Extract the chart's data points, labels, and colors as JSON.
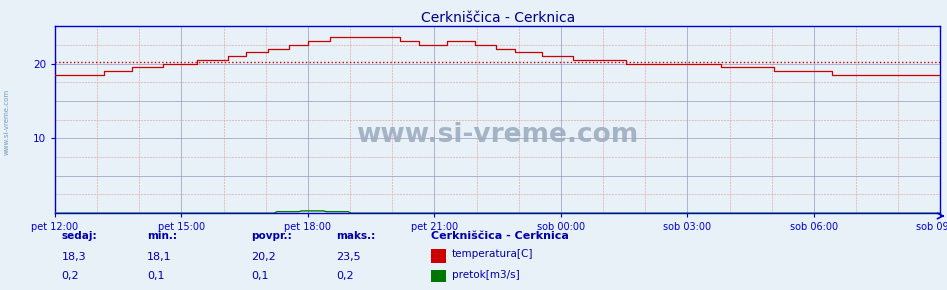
{
  "title": "Cerkniščica - Cerknica",
  "background_color": "#e8f0f8",
  "plot_bg_color": "#e8f0f8",
  "x_labels": [
    "pet 12:00",
    "pet 15:00",
    "pet 18:00",
    "pet 21:00",
    "sob 00:00",
    "sob 03:00",
    "sob 06:00",
    "sob 09:00"
  ],
  "ylim": [
    0,
    25
  ],
  "yticks": [
    10,
    20
  ],
  "temp_color": "#cc0000",
  "flow_color": "#007700",
  "avg_line_color": "#cc0000",
  "avg_line_value": 20.2,
  "grid_major_color": "#9999bb",
  "grid_minor_color": "#dd9999",
  "title_color": "#000088",
  "axis_color": "#0000cc",
  "text_color": "#0000aa",
  "watermark_text": "www.si-vreme.com",
  "watermark_color": "#99aabb",
  "sidebar_text": "www.si-vreme.com",
  "sidebar_color": "#7799bb",
  "footer_labels": [
    "sedaj:",
    "min.:",
    "povpr.:",
    "maks.:"
  ],
  "footer_temp_vals": [
    "18,3",
    "18,1",
    "20,2",
    "23,5"
  ],
  "footer_flow_vals": [
    "0,2",
    "0,1",
    "0,1",
    "0,2"
  ],
  "legend_title": "Cerkniščica - Cerknica",
  "legend_temp": "temperatura[C]",
  "legend_flow": "pretok[m3/s]"
}
